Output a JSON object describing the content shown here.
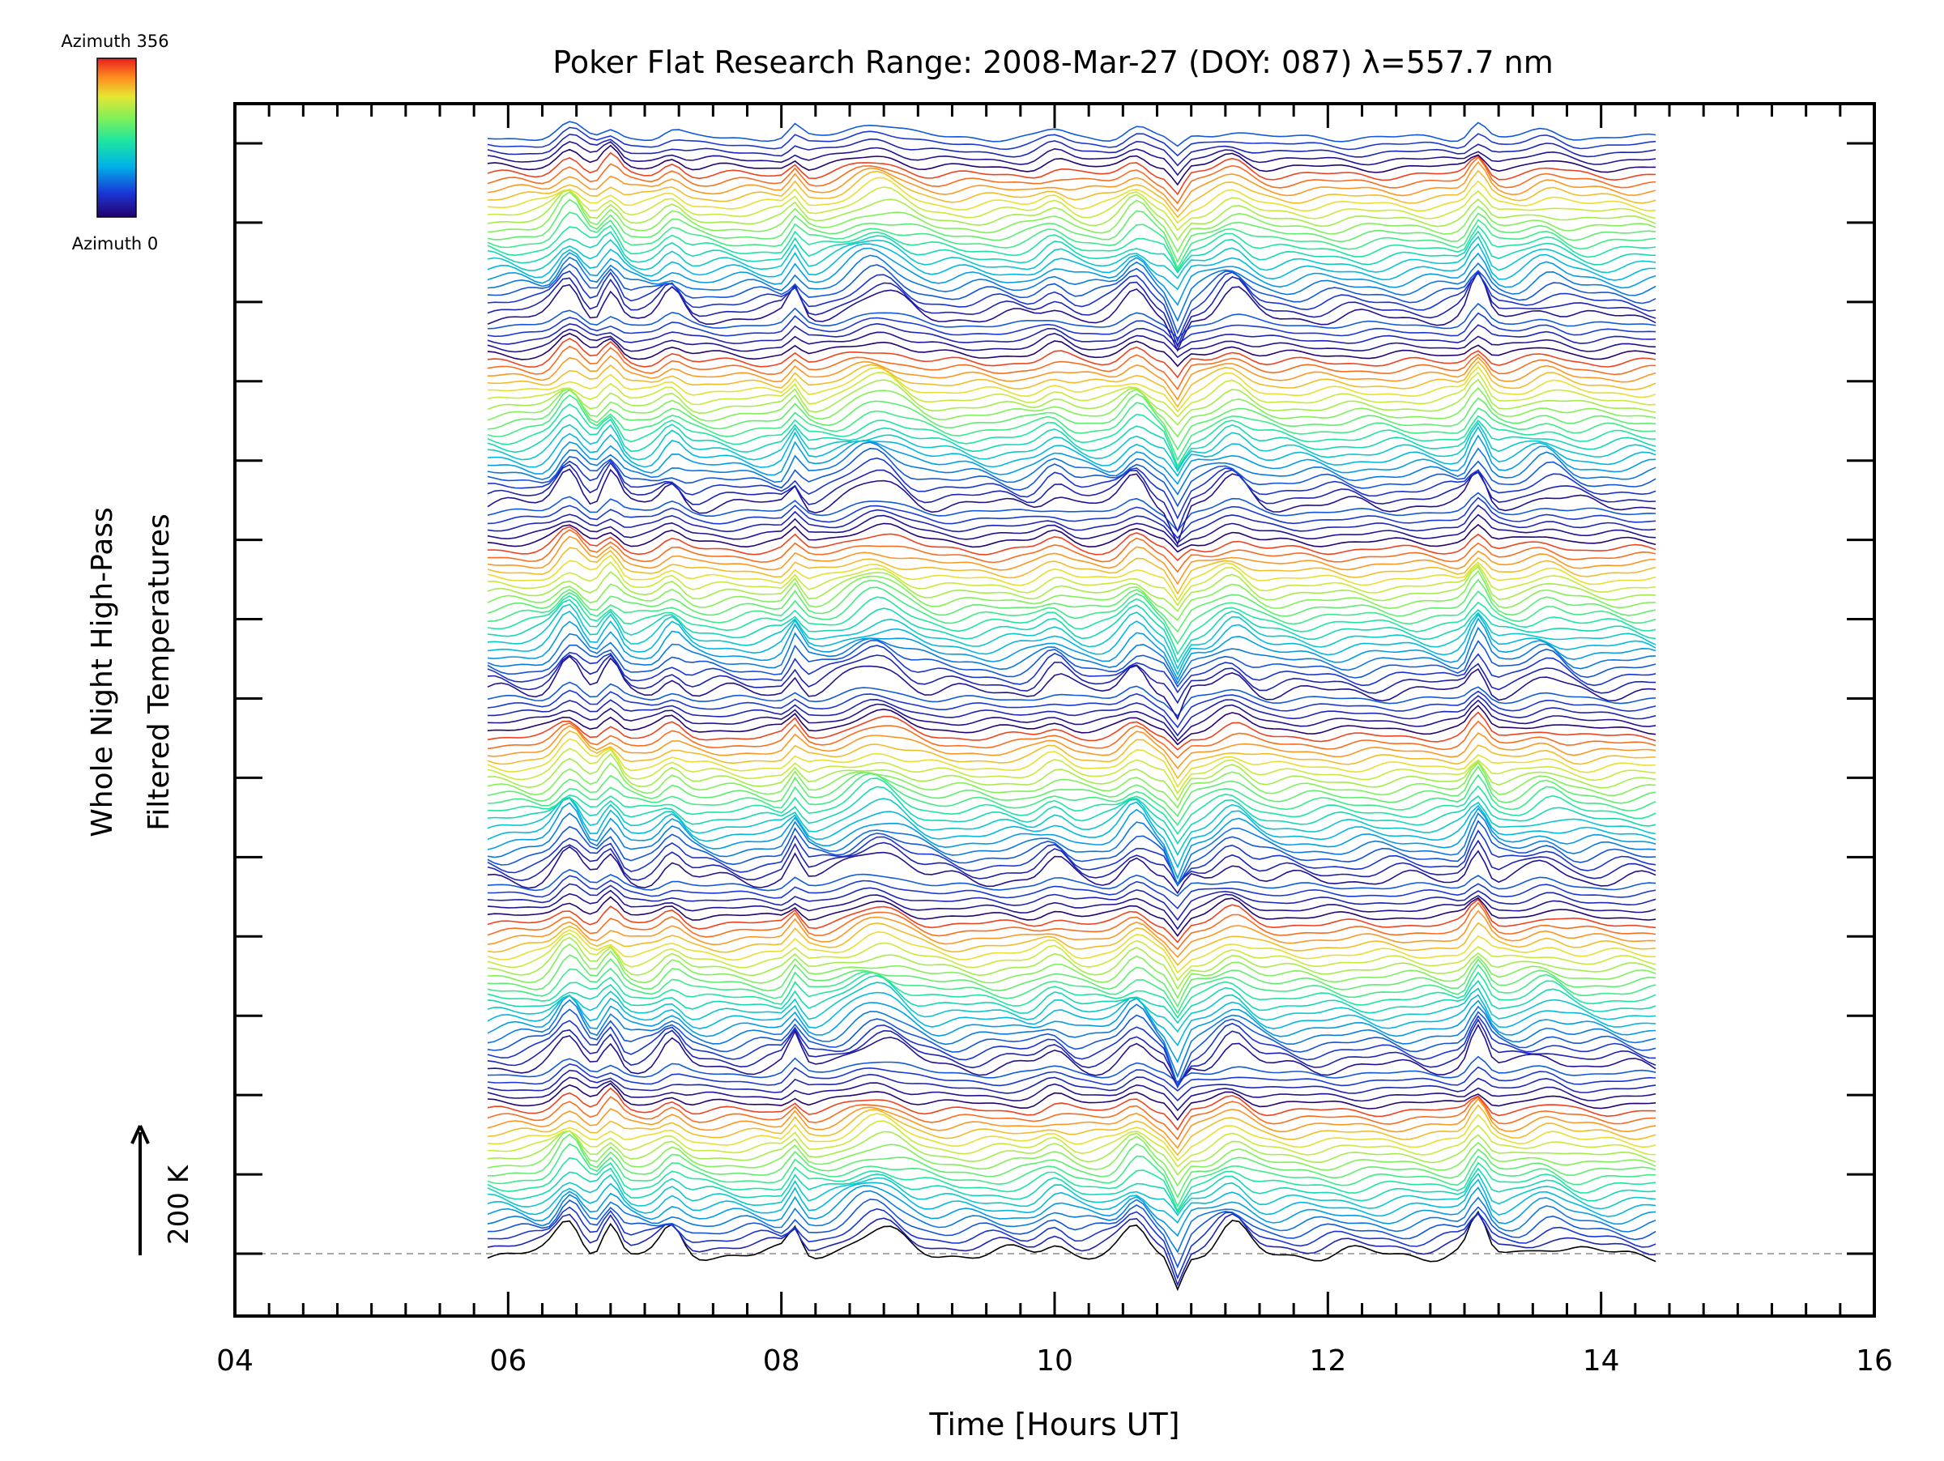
{
  "chart_data": {
    "type": "line",
    "title": "Poker Flat Research Range: 2008-Mar-27 (DOY: 087) λ=557.7 nm",
    "xlabel": "Time [Hours UT]",
    "ylabel_line1": "Whole Night High-Pass",
    "ylabel_line2": "Filtered Temperatures",
    "scale_label": "200 K",
    "scale_K": 200,
    "x_ticks": [
      "04",
      "06",
      "08",
      "10",
      "12",
      "14",
      "16"
    ],
    "x_tick_values": [
      4,
      6,
      8,
      10,
      12,
      14,
      16
    ],
    "xlim": [
      4,
      16
    ],
    "x_minor_step": 0.25,
    "y_major_tick_count": 15,
    "legend": {
      "type": "colorbar",
      "top_label": "Azimuth 356",
      "bottom_label": "Azimuth 0",
      "min_value": 0,
      "max_value": 356,
      "colormap": "rainbow"
    },
    "baseline_style": "dashed gray",
    "series_summary": {
      "description_source": "stacked high-pass filtered temperature traces, one per azimuth sample, offset vertically",
      "x_start": 5.85,
      "x_end": 14.4,
      "trace_count": 150,
      "group_count": 6,
      "peak_times_hours": [
        6.45,
        6.75,
        7.2,
        8.1,
        8.7,
        10.0,
        10.6,
        10.9,
        11.3,
        13.1,
        13.6
      ]
    }
  }
}
